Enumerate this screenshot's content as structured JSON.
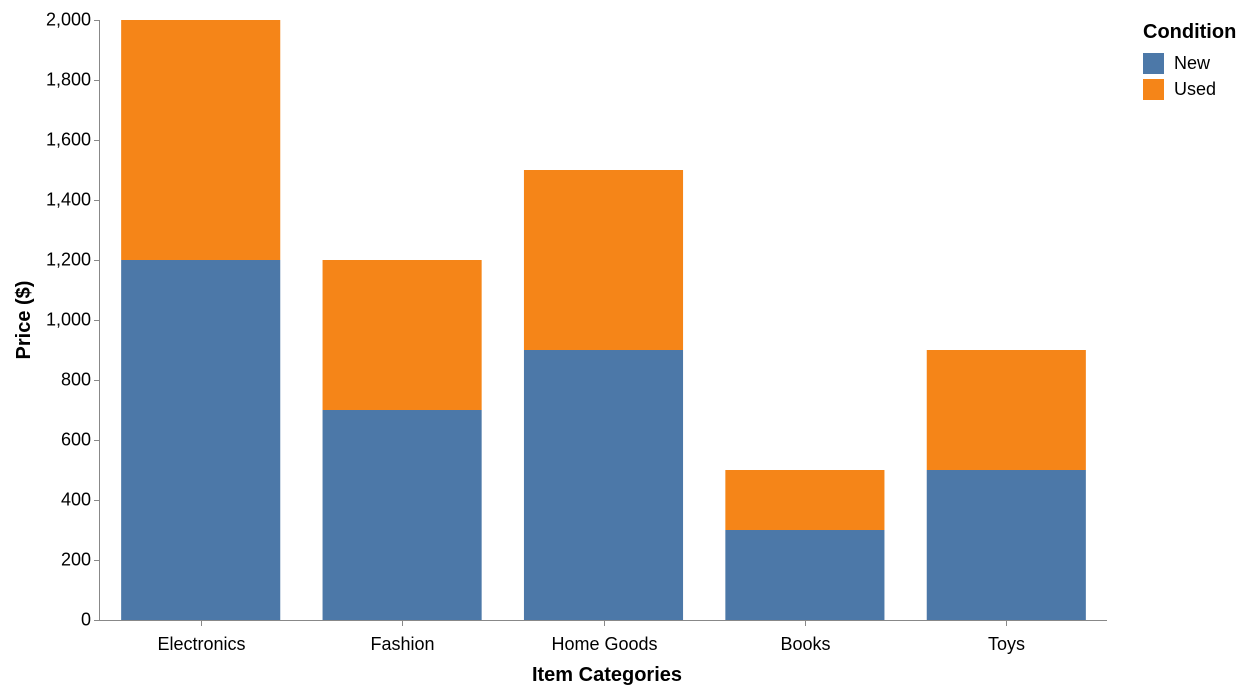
{
  "chart_data": {
    "type": "bar",
    "stacked": true,
    "categories": [
      "Electronics",
      "Fashion",
      "Home Goods",
      "Books",
      "Toys"
    ],
    "series": [
      {
        "name": "New",
        "values": [
          1200,
          700,
          900,
          300,
          500
        ],
        "color": "#4c78a8"
      },
      {
        "name": "Used",
        "values": [
          800,
          500,
          600,
          200,
          400
        ],
        "color": "#f58518"
      }
    ],
    "xlabel": "Item Categories",
    "ylabel": "Price ($)",
    "ylim": [
      0,
      2000
    ],
    "yticks": [
      0,
      200,
      400,
      600,
      800,
      1000,
      1200,
      1400,
      1600,
      1800,
      2000
    ],
    "ytick_labels": [
      "0",
      "200",
      "400",
      "600",
      "800",
      "1,000",
      "1,200",
      "1,400",
      "1,600",
      "1,800",
      "2,000"
    ],
    "grid": false,
    "legend": {
      "title": "Condition",
      "position": "top-right"
    }
  }
}
